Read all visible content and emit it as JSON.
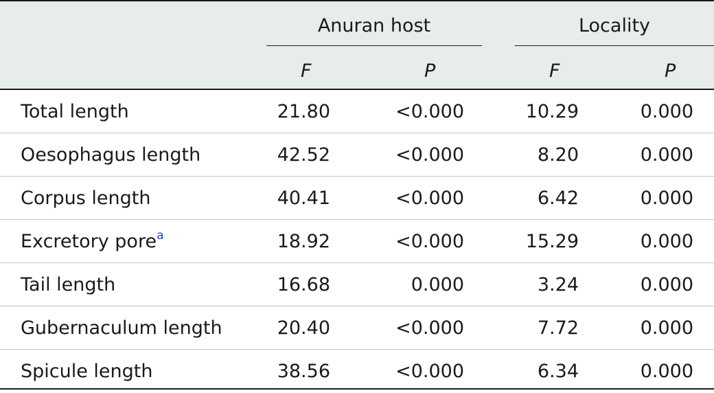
{
  "table": {
    "groups": [
      {
        "label": "Anuran host",
        "subcolumns": [
          "F",
          "P"
        ]
      },
      {
        "label": "Locality",
        "subcolumns": [
          "F",
          "P"
        ]
      }
    ],
    "rows": [
      {
        "label": "Total length",
        "sup": "",
        "host_f": "21.80",
        "host_p": "<0.000",
        "loc_f": "10.29",
        "loc_p": "0.000"
      },
      {
        "label": "Oesophagus length",
        "sup": "",
        "host_f": "42.52",
        "host_p": "<0.000",
        "loc_f": "8.20",
        "loc_p": "0.000"
      },
      {
        "label": "Corpus length",
        "sup": "",
        "host_f": "40.41",
        "host_p": "<0.000",
        "loc_f": "6.42",
        "loc_p": "0.000"
      },
      {
        "label": "Excretory pore",
        "sup": "a",
        "host_f": "18.92",
        "host_p": "<0.000",
        "loc_f": "15.29",
        "loc_p": "0.000"
      },
      {
        "label": "Tail length",
        "sup": "",
        "host_f": "16.68",
        "host_p": "0.000",
        "loc_f": "3.24",
        "loc_p": "0.000"
      },
      {
        "label": "Gubernaculum length",
        "sup": "",
        "host_f": "20.40",
        "host_p": "<0.000",
        "loc_f": "7.72",
        "loc_p": "0.000"
      },
      {
        "label": "Spicule length",
        "sup": "",
        "host_f": "38.56",
        "host_p": "<0.000",
        "loc_f": "6.34",
        "loc_p": "0.000"
      }
    ]
  },
  "colors": {
    "header_bg": "#e7ecec",
    "rule": "#1a1a1a",
    "divider": "#bfc7c7",
    "footnote_link": "#1f3fd1"
  }
}
